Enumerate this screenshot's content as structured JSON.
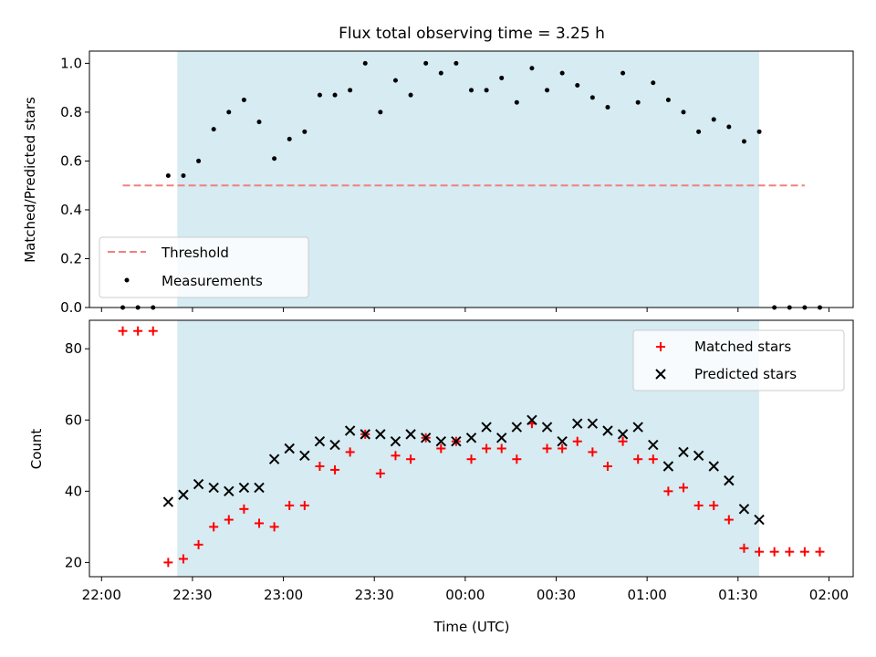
{
  "chart_data": [
    {
      "type": "scatter",
      "title": "Flux total observing time = 3.25 h",
      "xlabel": "",
      "ylabel": "Matched/Predicted stars",
      "ylim": [
        0,
        1.05
      ],
      "yticks": [
        "0.0",
        "0.2",
        "0.4",
        "0.6",
        "0.8",
        "1.0"
      ],
      "shaded_region": {
        "x_start_min": 25,
        "x_end_min": 217,
        "color": "#add8e6"
      },
      "threshold": {
        "name": "Threshold",
        "value": 0.5,
        "x_start_min": 7,
        "x_end_min": 232,
        "color": "#f08080"
      },
      "legend": {
        "placement": "lower left",
        "entries": [
          "Threshold",
          "Measurements"
        ]
      },
      "series": [
        {
          "name": "Measurements",
          "marker": "dot",
          "color": "#000000",
          "x_min": [
            7,
            12,
            17,
            22,
            27,
            32,
            37,
            42,
            47,
            52,
            57,
            62,
            67,
            72,
            77,
            82,
            87,
            92,
            97,
            102,
            107,
            112,
            117,
            122,
            127,
            132,
            137,
            142,
            147,
            152,
            157,
            162,
            167,
            172,
            177,
            182,
            187,
            192,
            197,
            202,
            207,
            212,
            217,
            222,
            227,
            232,
            237
          ],
          "y": [
            0,
            0,
            0,
            0.54,
            0.54,
            0.6,
            0.73,
            0.8,
            0.85,
            0.76,
            0.61,
            0.69,
            0.72,
            0.87,
            0.87,
            0.89,
            1.0,
            0.8,
            0.93,
            0.87,
            1.0,
            0.96,
            1.0,
            0.89,
            0.89,
            0.94,
            0.84,
            0.98,
            0.89,
            0.96,
            0.91,
            0.86,
            0.82,
            0.96,
            0.84,
            0.92,
            0.85,
            0.8,
            0.72,
            0.77,
            0.74,
            0.68,
            0.72,
            0,
            0,
            0,
            0
          ]
        }
      ]
    },
    {
      "type": "scatter",
      "title": "",
      "xlabel": "Time (UTC)",
      "ylabel": "Count",
      "ylim": [
        16,
        88
      ],
      "yticks": [
        "20",
        "40",
        "60",
        "80"
      ],
      "xticks": [
        "22:00",
        "22:30",
        "23:00",
        "23:30",
        "00:00",
        "00:30",
        "01:00",
        "01:30",
        "02:00"
      ],
      "xlim_min": [
        -4,
        248
      ],
      "shaded_region": {
        "x_start_min": 25,
        "x_end_min": 217,
        "color": "#add8e6"
      },
      "legend": {
        "placement": "upper right",
        "entries": [
          "Matched stars",
          "Predicted stars"
        ]
      },
      "series": [
        {
          "name": "Matched stars",
          "marker": "plus",
          "color": "#ff0000",
          "x_min": [
            7,
            12,
            17,
            22,
            27,
            32,
            37,
            42,
            47,
            52,
            57,
            62,
            67,
            72,
            77,
            82,
            87,
            92,
            97,
            102,
            107,
            112,
            117,
            122,
            127,
            132,
            137,
            142,
            147,
            152,
            157,
            162,
            167,
            172,
            177,
            182,
            187,
            192,
            197,
            202,
            207,
            212,
            217,
            222,
            227,
            232,
            237
          ],
          "y": [
            85,
            85,
            85,
            20,
            21,
            25,
            30,
            32,
            35,
            31,
            30,
            36,
            36,
            47,
            46,
            51,
            56,
            45,
            50,
            49,
            55,
            52,
            54,
            49,
            52,
            52,
            49,
            59,
            52,
            52,
            54,
            51,
            47,
            54,
            49,
            49,
            40,
            41,
            36,
            36,
            32,
            24,
            23,
            23,
            23,
            23,
            23
          ]
        },
        {
          "name": "Predicted stars",
          "marker": "x",
          "color": "#000000",
          "x_min": [
            22,
            27,
            32,
            37,
            42,
            47,
            52,
            57,
            62,
            67,
            72,
            77,
            82,
            87,
            92,
            97,
            102,
            107,
            112,
            117,
            122,
            127,
            132,
            137,
            142,
            147,
            152,
            157,
            162,
            167,
            172,
            177,
            182,
            187,
            192,
            197,
            202,
            207,
            212,
            217
          ],
          "y": [
            37,
            39,
            42,
            41,
            40,
            41,
            41,
            49,
            52,
            50,
            54,
            53,
            57,
            56,
            56,
            54,
            56,
            55,
            54,
            54,
            55,
            58,
            55,
            58,
            60,
            58,
            54,
            59,
            59,
            57,
            56,
            58,
            53,
            47,
            51,
            50,
            47,
            43,
            35,
            32
          ]
        }
      ]
    }
  ]
}
